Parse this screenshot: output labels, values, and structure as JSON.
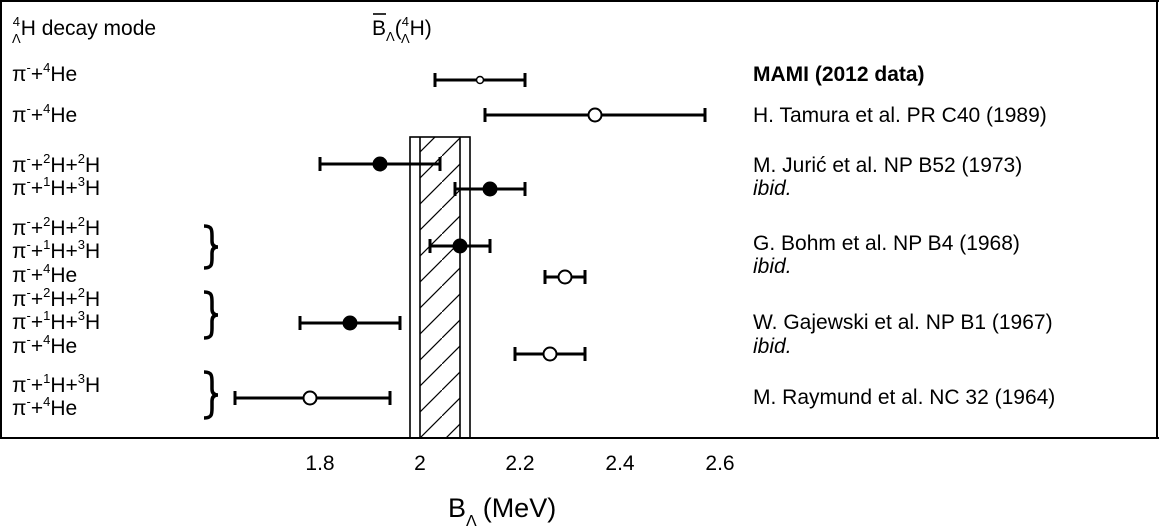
{
  "chart_data": {
    "type": "scatter",
    "xlabel_main": "B",
    "xlabel_sub": "Λ",
    "xlabel_unit": "(MeV)",
    "xlim": [
      1.6,
      2.74
    ],
    "ticks": [
      1.8,
      2.0,
      2.2,
      2.4,
      2.6
    ],
    "tick_labels": [
      "1.8",
      "2",
      "2.2",
      "2.4",
      "2.6"
    ],
    "left_header": {
      "sup": "4",
      "sub": "Λ",
      "text": "H decay mode"
    },
    "mean_header": {
      "sym": "B",
      "sub": "Λ",
      "paren_open": "(",
      "sup": "4",
      "sub2": "Λ",
      "tail": "H)"
    },
    "band": {
      "inner": [
        2.0,
        2.08
      ],
      "outer": [
        1.98,
        2.1
      ]
    },
    "modes": [
      [
        {
          "t": "π"
        },
        {
          "t": "-",
          "sup": 1
        },
        {
          "t": "+"
        },
        {
          "t": "4",
          "sup": 1
        },
        {
          "t": "He"
        }
      ],
      [
        {
          "t": "π"
        },
        {
          "t": "-",
          "sup": 1
        },
        {
          "t": "+"
        },
        {
          "t": "4",
          "sup": 1
        },
        {
          "t": "He"
        }
      ],
      [
        {
          "t": "π"
        },
        {
          "t": "-",
          "sup": 1
        },
        {
          "t": "+"
        },
        {
          "t": "2",
          "sup": 1
        },
        {
          "t": "H+"
        },
        {
          "t": "2",
          "sup": 1
        },
        {
          "t": "H"
        }
      ],
      [
        {
          "t": "π"
        },
        {
          "t": "-",
          "sup": 1
        },
        {
          "t": "+"
        },
        {
          "t": "1",
          "sup": 1
        },
        {
          "t": "H+"
        },
        {
          "t": "3",
          "sup": 1
        },
        {
          "t": "H"
        }
      ],
      [
        {
          "t": "π"
        },
        {
          "t": "-",
          "sup": 1
        },
        {
          "t": "+"
        },
        {
          "t": "2",
          "sup": 1
        },
        {
          "t": "H+"
        },
        {
          "t": "2",
          "sup": 1
        },
        {
          "t": "H"
        }
      ],
      [
        {
          "t": "π"
        },
        {
          "t": "-",
          "sup": 1
        },
        {
          "t": "+"
        },
        {
          "t": "1",
          "sup": 1
        },
        {
          "t": "H+"
        },
        {
          "t": "3",
          "sup": 1
        },
        {
          "t": "H"
        }
      ],
      [
        {
          "t": "π"
        },
        {
          "t": "-",
          "sup": 1
        },
        {
          "t": "+"
        },
        {
          "t": "4",
          "sup": 1
        },
        {
          "t": "He"
        }
      ],
      [
        {
          "t": "π"
        },
        {
          "t": "-",
          "sup": 1
        },
        {
          "t": "+"
        },
        {
          "t": "2",
          "sup": 1
        },
        {
          "t": "H+"
        },
        {
          "t": "2",
          "sup": 1
        },
        {
          "t": "H"
        }
      ],
      [
        {
          "t": "π"
        },
        {
          "t": "-",
          "sup": 1
        },
        {
          "t": "+"
        },
        {
          "t": "1",
          "sup": 1
        },
        {
          "t": "H+"
        },
        {
          "t": "3",
          "sup": 1
        },
        {
          "t": "H"
        }
      ],
      [
        {
          "t": "π"
        },
        {
          "t": "-",
          "sup": 1
        },
        {
          "t": "+"
        },
        {
          "t": "4",
          "sup": 1
        },
        {
          "t": "He"
        }
      ],
      [
        {
          "t": "π"
        },
        {
          "t": "-",
          "sup": 1
        },
        {
          "t": "+"
        },
        {
          "t": "1",
          "sup": 1
        },
        {
          "t": "H+"
        },
        {
          "t": "3",
          "sup": 1
        },
        {
          "t": "H"
        }
      ],
      [
        {
          "t": "π"
        },
        {
          "t": "-",
          "sup": 1
        },
        {
          "t": "+"
        },
        {
          "t": "4",
          "sup": 1
        },
        {
          "t": "He"
        }
      ]
    ],
    "points": [
      {
        "value": 2.12,
        "lo": 2.03,
        "hi": 2.21,
        "marker": "small-open"
      },
      {
        "value": 2.35,
        "lo": 2.13,
        "hi": 2.57,
        "marker": "open"
      },
      {
        "value": 1.92,
        "lo": 1.8,
        "hi": 2.04,
        "marker": "filled"
      },
      {
        "value": 2.14,
        "lo": 2.07,
        "hi": 2.21,
        "marker": "filled"
      },
      {
        "value": 2.08,
        "lo": 2.02,
        "hi": 2.14,
        "marker": "filled"
      },
      {
        "value": 2.29,
        "lo": 2.25,
        "hi": 2.33,
        "marker": "open"
      },
      {
        "value": 1.86,
        "lo": 1.76,
        "hi": 1.96,
        "marker": "filled"
      },
      {
        "value": 2.26,
        "lo": 2.19,
        "hi": 2.33,
        "marker": "open"
      },
      {
        "value": 1.78,
        "lo": 1.63,
        "hi": 1.94,
        "marker": "open"
      }
    ],
    "references": [
      {
        "text": "MAMI (2012 data)",
        "bold": true
      },
      {
        "text": "H. Tamura et al. PR C40 (1989)"
      },
      {
        "text": "M. Jurić et al. NP B52 (1973)"
      },
      {
        "text": "ibid.",
        "italic": true
      },
      {
        "text": "G. Bohm et al. NP B4 (1968)"
      },
      {
        "text": "ibid.",
        "italic": true
      },
      {
        "text": "W. Gajewski et al. NP B1 (1967)"
      },
      {
        "text": "ibid.",
        "italic": true
      },
      {
        "text": "M. Raymund et al. NC 32 (1964)"
      }
    ],
    "braces": 3
  }
}
